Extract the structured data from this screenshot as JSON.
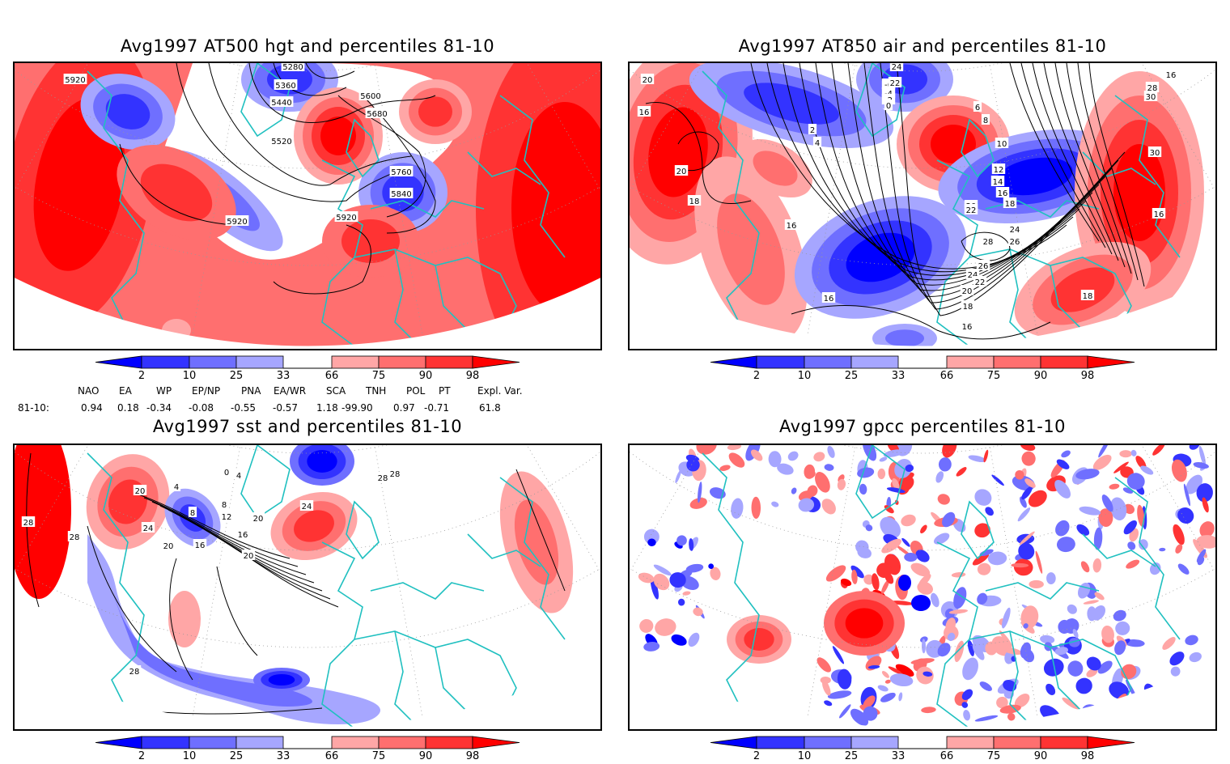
{
  "colorbar": {
    "tick_labels": [
      "2",
      "10",
      "25",
      "33",
      "66",
      "75",
      "90",
      "98"
    ],
    "colors": {
      "below2": "#0000ff",
      "2_10": "#3333ff",
      "10_25": "#6f6fff",
      "25_33": "#a6a6ff",
      "33_66": "#ffffff",
      "66_75": "#ffa6a6",
      "75_90": "#ff6f6f",
      "90_98": "#ff3333",
      "above98": "#ff0000"
    }
  },
  "colors": {
    "coastline": "#20c0c0",
    "contour": "#000000",
    "grid": "#999999"
  },
  "panels": [
    {
      "id": "at500",
      "title": "Avg1997 AT500 hgt and percentiles 81-10",
      "contour_labels": [
        "5920",
        "5280",
        "5360",
        "5440",
        "5600",
        "5680",
        "5520",
        "5760",
        "5840",
        "5920",
        "5920"
      ]
    },
    {
      "id": "at850",
      "title": "Avg1997 AT850 air and percentiles 81-10",
      "contour_labels": [
        "20",
        "16",
        "20",
        "18",
        "-6",
        "-4",
        "-2",
        "0",
        "2",
        "4",
        "6",
        "8",
        "10",
        "12",
        "14",
        "16",
        "18",
        "20",
        "22",
        "24",
        "26",
        "28",
        "26",
        "24",
        "22",
        "20",
        "18",
        "16",
        "16",
        "22",
        "24",
        "26",
        "28",
        "30",
        "30",
        "16",
        "18",
        "16"
      ]
    },
    {
      "id": "sst",
      "title": "Avg1997 sst and percentiles 81-10",
      "contour_labels": [
        "28",
        "28",
        "20",
        "24",
        "20",
        "16",
        "12",
        "8",
        "4",
        "0",
        "4",
        "8",
        "16",
        "20",
        "20",
        "28",
        "24",
        "28",
        "28"
      ]
    },
    {
      "id": "gpcc",
      "title": "Avg1997 gpcc percentiles 81-10",
      "contour_labels": []
    }
  ],
  "teleconnections": {
    "row_label": "81-10:",
    "headers": [
      "NAO",
      "EA",
      "WP",
      "EP/NP",
      "PNA",
      "EA/WR",
      "SCA",
      "TNH",
      "POL",
      "PT",
      "Expl. Var."
    ],
    "values": [
      "0.94",
      "0.18",
      "-0.34",
      "-0.08",
      "-0.55",
      "-0.57",
      "1.18",
      "-99.90",
      "0.97",
      "-0.71",
      "61.8"
    ]
  },
  "chart_data": [
    {
      "type": "heatmap",
      "title": "Avg1997 AT500 hgt and percentiles 81-10",
      "field": "500 hPa geopotential height (contours) with percentile shading",
      "legend": {
        "position": "bottom",
        "ticks": [
          2,
          10,
          25,
          33,
          66,
          75,
          90,
          98
        ]
      },
      "contour_values": [
        5280,
        5360,
        5440,
        5520,
        5600,
        5680,
        5760,
        5840,
        5920
      ]
    },
    {
      "type": "heatmap",
      "title": "Avg1997 AT850 air and percentiles 81-10",
      "field": "850 hPa air temperature (contours) with percentile shading",
      "legend": {
        "position": "bottom",
        "ticks": [
          2,
          10,
          25,
          33,
          66,
          75,
          90,
          98
        ]
      },
      "contour_values": [
        -6,
        -4,
        -2,
        0,
        2,
        4,
        6,
        8,
        10,
        12,
        14,
        16,
        18,
        20,
        22,
        24,
        26,
        28,
        30
      ]
    },
    {
      "type": "heatmap",
      "title": "Avg1997 sst and percentiles 81-10",
      "field": "sea surface temperature (contours) with percentile shading",
      "legend": {
        "position": "bottom",
        "ticks": [
          2,
          10,
          25,
          33,
          66,
          75,
          90,
          98
        ]
      },
      "contour_values": [
        0,
        4,
        8,
        12,
        16,
        20,
        24,
        28
      ]
    },
    {
      "type": "heatmap",
      "title": "Avg1997 gpcc percentiles 81-10",
      "field": "GPCC precipitation percentile shading",
      "legend": {
        "position": "bottom",
        "ticks": [
          2,
          10,
          25,
          33,
          66,
          75,
          90,
          98
        ]
      }
    }
  ]
}
